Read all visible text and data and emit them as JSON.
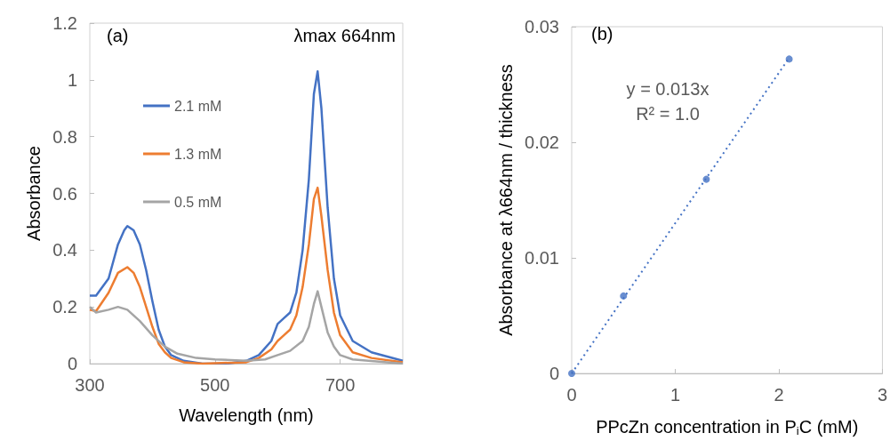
{
  "chart_data": [
    {
      "type": "line",
      "xlabel": "Wavelength (nm)",
      "ylabel": "Absorbance",
      "xlim": [
        300,
        800
      ],
      "xticks": [
        300,
        500,
        700
      ],
      "ylim": [
        0,
        1.2
      ],
      "yticks": [
        0,
        0.2,
        0.4,
        0.6,
        0.8,
        1,
        1.2
      ],
      "grid": false,
      "legend": "top left",
      "marker": "none",
      "line_style": "solid",
      "annotations": [
        "(a)",
        "λmax 664nm"
      ],
      "series": [
        {
          "name": "2.1 mM",
          "color": "#4472c4",
          "x": [
            300,
            310,
            330,
            345,
            355,
            360,
            370,
            380,
            390,
            400,
            410,
            420,
            430,
            450,
            480,
            520,
            550,
            570,
            590,
            600,
            610,
            620,
            630,
            640,
            650,
            658,
            664,
            670,
            680,
            690,
            700,
            720,
            750,
            800
          ],
          "values": [
            0.24,
            0.24,
            0.3,
            0.42,
            0.47,
            0.485,
            0.47,
            0.42,
            0.33,
            0.22,
            0.12,
            0.06,
            0.03,
            0.01,
            0,
            0,
            0.01,
            0.03,
            0.08,
            0.14,
            0.16,
            0.18,
            0.25,
            0.4,
            0.65,
            0.95,
            1.03,
            0.9,
            0.55,
            0.3,
            0.17,
            0.08,
            0.04,
            0.01
          ]
        },
        {
          "name": "1.3 mM",
          "color": "#ed7d31",
          "x": [
            300,
            310,
            330,
            345,
            360,
            370,
            380,
            390,
            400,
            410,
            420,
            430,
            450,
            480,
            550,
            570,
            590,
            600,
            610,
            620,
            630,
            640,
            650,
            658,
            664,
            670,
            680,
            690,
            700,
            720,
            750,
            800
          ],
          "values": [
            0.19,
            0.185,
            0.25,
            0.32,
            0.34,
            0.32,
            0.27,
            0.2,
            0.13,
            0.07,
            0.04,
            0.02,
            0.005,
            0,
            0.005,
            0.02,
            0.05,
            0.08,
            0.1,
            0.12,
            0.17,
            0.27,
            0.42,
            0.58,
            0.62,
            0.52,
            0.33,
            0.18,
            0.1,
            0.04,
            0.02,
            0.005
          ]
        },
        {
          "name": "0.5 mM",
          "color": "#a5a5a5",
          "x": [
            300,
            310,
            330,
            345,
            360,
            380,
            400,
            420,
            440,
            470,
            500,
            550,
            580,
            600,
            620,
            640,
            650,
            658,
            664,
            670,
            680,
            690,
            700,
            720,
            800
          ],
          "values": [
            0.2,
            0.18,
            0.19,
            0.2,
            0.19,
            0.15,
            0.1,
            0.06,
            0.035,
            0.02,
            0.015,
            0.01,
            0.015,
            0.03,
            0.045,
            0.08,
            0.13,
            0.21,
            0.255,
            0.2,
            0.11,
            0.06,
            0.03,
            0.015,
            0
          ]
        }
      ]
    },
    {
      "type": "scatter",
      "xlabel": "PPcZn concentration in P$_{i}$C (mM)",
      "ylabel": "Absorbance at λ664nm / thickness",
      "xlim": [
        0,
        3
      ],
      "xticks": [
        0,
        1,
        2,
        3
      ],
      "ylim": [
        0,
        0.03
      ],
      "yticks": [
        0,
        0.01,
        0.02,
        0.03
      ],
      "grid": false,
      "legend": false,
      "marker": "circle",
      "annotations": [
        "(b)",
        "y = 0.013x",
        "R² = 1.0"
      ],
      "series": [
        {
          "color": "#4472c4",
          "x": [
            0,
            0.5,
            1.3,
            2.1
          ],
          "values": [
            0,
            0.0067,
            0.0168,
            0.0272
          ]
        },
        {
          "type": "line",
          "color": "#4472c4",
          "line_style": "dotted",
          "marker": "none",
          "x": [
            0,
            2.1
          ],
          "values": [
            0,
            0.0273
          ]
        }
      ]
    }
  ]
}
